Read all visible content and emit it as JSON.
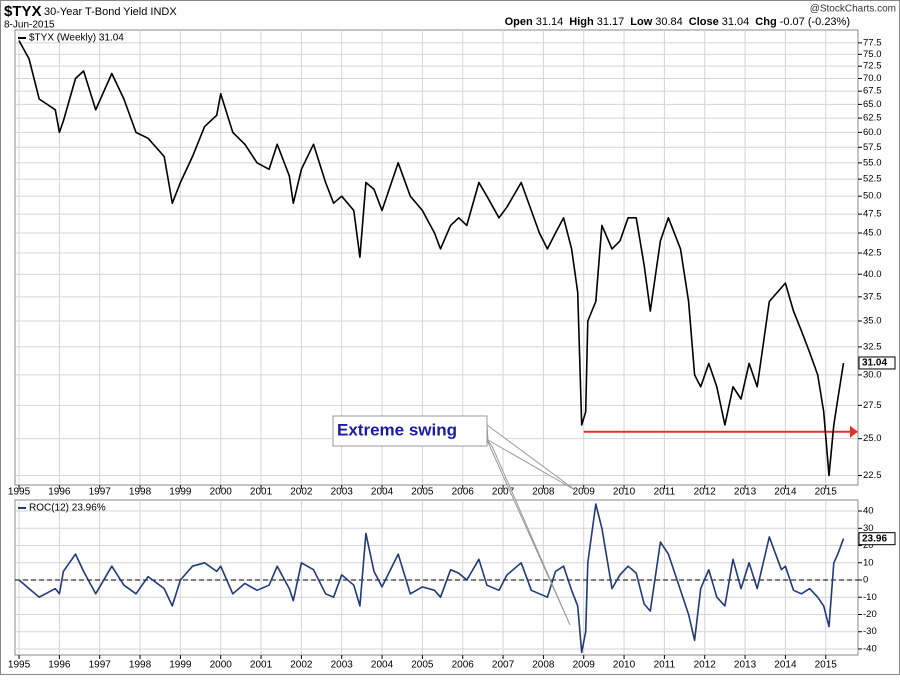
{
  "chart_data": [
    {
      "type": "line",
      "title": "$TYX",
      "subtitle": "30-Year T-Bond Yield INDX",
      "date": "8-Jun-2015",
      "source": "@StockCharts.com",
      "quote": [
        {
          "label": "Open",
          "value": 31.14
        },
        {
          "label": "High",
          "value": 31.17
        },
        {
          "label": "Low",
          "value": 30.84
        },
        {
          "label": "Close",
          "value": 31.04
        },
        {
          "label": "Chg",
          "value": "-0.07 (-0.23%)"
        }
      ],
      "annotation": "Extreme swing",
      "reference_line": {
        "value": 25.5,
        "x_start": 2009.0,
        "color": "#e8302a"
      },
      "log_scale": true,
      "grid": true,
      "x": [
        1995.0,
        1995.25,
        1995.5,
        1995.9,
        1996.0,
        1996.1,
        1996.4,
        1996.6,
        1996.9,
        1997.3,
        1997.6,
        1997.9,
        1998.2,
        1998.6,
        1998.8,
        1999.0,
        1999.3,
        1999.6,
        1999.9,
        2000.0,
        2000.3,
        2000.6,
        2000.9,
        2001.2,
        2001.4,
        2001.7,
        2001.8,
        2002.0,
        2002.3,
        2002.6,
        2002.8,
        2003.0,
        2003.3,
        2003.45,
        2003.6,
        2003.8,
        2004.0,
        2004.4,
        2004.7,
        2005.0,
        2005.3,
        2005.45,
        2005.7,
        2005.9,
        2006.1,
        2006.4,
        2006.6,
        2006.9,
        2007.1,
        2007.45,
        2007.7,
        2007.9,
        2008.1,
        2008.3,
        2008.5,
        2008.7,
        2008.85,
        2008.95,
        2009.05,
        2009.1,
        2009.3,
        2009.45,
        2009.7,
        2009.9,
        2010.1,
        2010.3,
        2010.5,
        2010.65,
        2010.9,
        2011.1,
        2011.4,
        2011.6,
        2011.75,
        2011.9,
        2012.1,
        2012.3,
        2012.5,
        2012.7,
        2012.9,
        2013.1,
        2013.3,
        2013.6,
        2013.9,
        2014.0,
        2014.2,
        2014.4,
        2014.6,
        2014.8,
        2014.95,
        2015.08,
        2015.2,
        2015.3,
        2015.44
      ],
      "series": [
        {
          "name": "$TYX (Weekly) 31.04",
          "color": "#000000",
          "values": [
            78,
            74,
            66,
            64,
            60,
            62,
            70,
            71.5,
            64,
            71,
            66,
            60,
            59,
            56,
            49,
            52,
            56,
            61,
            63,
            67,
            60,
            58,
            55,
            54,
            58,
            53,
            49,
            54,
            58,
            52,
            49,
            50,
            48,
            42,
            52,
            51,
            48,
            55,
            50,
            48,
            45,
            43,
            46,
            47,
            46,
            52,
            50,
            47,
            48.5,
            52,
            48,
            45,
            43,
            45,
            47,
            43,
            38,
            26,
            27,
            35,
            37,
            46,
            43,
            44,
            47,
            47,
            41,
            36,
            44,
            47,
            43,
            37,
            30,
            29,
            31,
            29,
            26,
            29,
            28,
            31,
            29,
            37,
            38.5,
            39,
            36,
            34,
            32,
            30,
            27,
            22.5,
            26,
            28,
            31.04
          ]
        }
      ],
      "xlim": [
        1994.9,
        2015.8
      ],
      "xticks": [
        1995,
        1996,
        1997,
        1998,
        1999,
        2000,
        2001,
        2002,
        2003,
        2004,
        2005,
        2006,
        2007,
        2008,
        2009,
        2010,
        2011,
        2012,
        2013,
        2014,
        2015
      ],
      "ylim": [
        21.9,
        80.4
      ],
      "yticks": [
        22.5,
        {
          "value": 25,
          "label": "25.0"
        },
        27.5,
        {
          "value": 30,
          "label": "30.0"
        },
        32.5,
        {
          "value": 35,
          "label": "35.0"
        },
        37.5,
        {
          "value": 40,
          "label": "40.0"
        },
        42.5,
        {
          "value": 45,
          "label": "45.0"
        },
        47.5,
        {
          "value": 50,
          "label": "50.0"
        },
        52.5,
        {
          "value": 55,
          "label": "55.0"
        },
        57.5,
        {
          "value": 60,
          "label": "60.0"
        },
        62.5,
        {
          "value": 65,
          "label": "65.0"
        },
        67.5,
        {
          "value": 70,
          "label": "70.0"
        },
        72.5,
        {
          "value": 75,
          "label": "75.0"
        },
        77.5
      ]
    },
    {
      "type": "line",
      "grid": true,
      "x": [
        1995.0,
        1995.25,
        1995.5,
        1995.9,
        1996.0,
        1996.1,
        1996.4,
        1996.6,
        1996.9,
        1997.3,
        1997.6,
        1997.9,
        1998.2,
        1998.6,
        1998.8,
        1999.0,
        1999.3,
        1999.6,
        1999.9,
        2000.0,
        2000.3,
        2000.6,
        2000.9,
        2001.2,
        2001.4,
        2001.7,
        2001.8,
        2002.0,
        2002.3,
        2002.6,
        2002.8,
        2003.0,
        2003.3,
        2003.45,
        2003.6,
        2003.8,
        2004.0,
        2004.4,
        2004.7,
        2005.0,
        2005.3,
        2005.45,
        2005.7,
        2005.9,
        2006.1,
        2006.4,
        2006.6,
        2006.9,
        2007.1,
        2007.45,
        2007.7,
        2007.9,
        2008.1,
        2008.3,
        2008.5,
        2008.7,
        2008.85,
        2008.95,
        2009.05,
        2009.1,
        2009.3,
        2009.45,
        2009.7,
        2009.9,
        2010.1,
        2010.3,
        2010.5,
        2010.65,
        2010.9,
        2011.1,
        2011.4,
        2011.6,
        2011.75,
        2011.9,
        2012.1,
        2012.3,
        2012.5,
        2012.7,
        2012.9,
        2013.1,
        2013.3,
        2013.6,
        2013.9,
        2014.0,
        2014.2,
        2014.4,
        2014.6,
        2014.8,
        2014.95,
        2015.08,
        2015.2,
        2015.3,
        2015.44
      ],
      "series": [
        {
          "name": "ROC(12) 23.96%",
          "color": "#1f3a7a",
          "values": [
            0,
            -5,
            -10,
            -5,
            -8,
            5,
            15,
            5,
            -8,
            8,
            -3,
            -8,
            2,
            -5,
            -15,
            0,
            8,
            10,
            5,
            8,
            -8,
            -2,
            -6,
            -3,
            8,
            -5,
            -12,
            10,
            6,
            -8,
            -10,
            3,
            -3,
            -15,
            27,
            5,
            -4,
            15,
            -8,
            -4,
            -6,
            -10,
            6,
            4,
            0,
            12,
            -3,
            -6,
            3,
            10,
            -6,
            -8,
            -10,
            5,
            8,
            -6,
            -15,
            -42,
            -30,
            10,
            44,
            30,
            -5,
            3,
            8,
            4,
            -14,
            -18,
            22,
            15,
            -6,
            -20,
            -35,
            -5,
            6,
            -10,
            -15,
            12,
            -5,
            10,
            -5,
            25,
            6,
            8,
            -6,
            -8,
            -5,
            -10,
            -15,
            -27,
            10,
            15,
            23.96
          ]
        }
      ],
      "xlim": [
        1994.9,
        2015.8
      ],
      "xticks": [
        1995,
        1996,
        1997,
        1998,
        1999,
        2000,
        2001,
        2002,
        2003,
        2004,
        2005,
        2006,
        2007,
        2008,
        2009,
        2010,
        2011,
        2012,
        2013,
        2014,
        2015
      ],
      "ylim": [
        -43.5,
        46.4
      ],
      "yticks": [
        -40,
        -30,
        -20,
        -10,
        0,
        10,
        20,
        30,
        40
      ]
    }
  ]
}
